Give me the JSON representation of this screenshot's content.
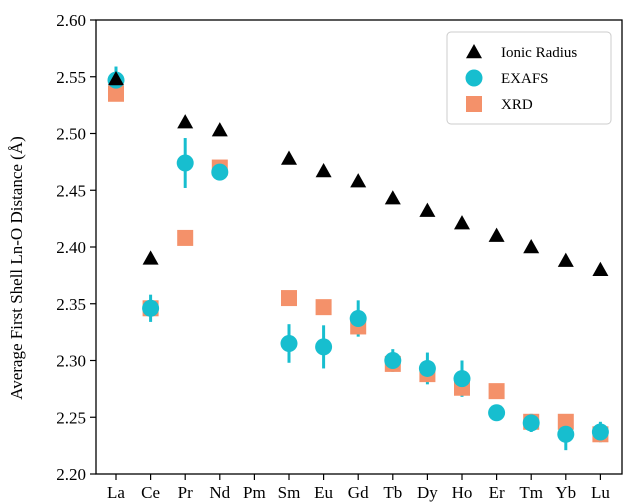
{
  "chart_data": {
    "type": "scatter",
    "categories": [
      "La",
      "Ce",
      "Pr",
      "Nd",
      "Pm",
      "Sm",
      "Eu",
      "Gd",
      "Tb",
      "Dy",
      "Ho",
      "Er",
      "Tm",
      "Yb",
      "Lu"
    ],
    "ylabel": "Average First Shell Ln-O Distance (Å)",
    "xlabel": "",
    "ylim": [
      2.2,
      2.6
    ],
    "yticks": [
      "2.20",
      "2.25",
      "2.30",
      "2.35",
      "2.40",
      "2.45",
      "2.50",
      "2.55",
      "2.60"
    ],
    "grid": false,
    "legend_position": "top-right",
    "series": [
      {
        "name": "Ionic Radius",
        "marker": "triangle",
        "color": "#000000",
        "values": [
          2.548,
          2.39,
          2.51,
          2.503,
          null,
          2.478,
          2.467,
          2.458,
          2.443,
          2.432,
          2.421,
          2.41,
          2.4,
          2.388,
          2.38
        ]
      },
      {
        "name": "EXAFS",
        "marker": "circle",
        "color": "#17becf",
        "values": [
          2.547,
          2.346,
          2.474,
          2.466,
          null,
          2.315,
          2.312,
          2.337,
          2.3,
          2.293,
          2.284,
          2.254,
          2.245,
          2.235,
          2.237
        ],
        "errors": [
          0.012,
          0.012,
          0.022,
          0.003,
          null,
          0.017,
          0.019,
          0.016,
          0.01,
          0.014,
          0.016,
          0.004,
          0.008,
          0.014,
          0.009
        ]
      },
      {
        "name": "XRD",
        "marker": "square",
        "color": "#f4916a",
        "values": [
          2.535,
          2.346,
          2.408,
          2.47,
          null,
          2.355,
          2.347,
          2.33,
          2.297,
          2.288,
          2.276,
          2.273,
          2.246,
          2.246,
          2.235
        ]
      }
    ]
  }
}
